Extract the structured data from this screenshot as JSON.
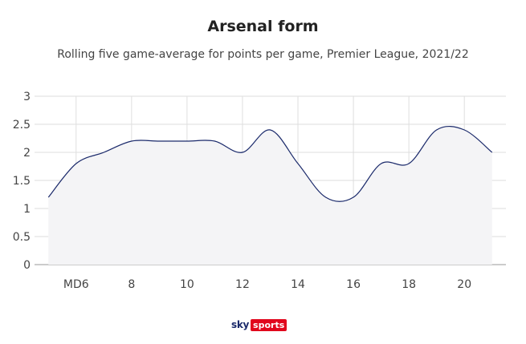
{
  "chart_data": {
    "type": "area",
    "title": "Arsenal form",
    "subtitle": "Rolling five game-average for points per game, Premier League, 2021/22",
    "x": [
      5,
      6,
      7,
      8,
      9,
      10,
      11,
      12,
      13,
      14,
      15,
      16,
      17,
      18,
      19,
      20,
      21
    ],
    "values": [
      1.2,
      1.8,
      2.0,
      2.2,
      2.2,
      2.2,
      2.2,
      2.0,
      2.4,
      1.8,
      1.2,
      1.2,
      1.8,
      1.8,
      2.4,
      2.4,
      2.0
    ],
    "xticks": [
      6,
      8,
      10,
      12,
      14,
      16,
      18,
      20
    ],
    "xtick_labels": [
      "MD6",
      "8",
      "10",
      "12",
      "14",
      "16",
      "18",
      "20"
    ],
    "xlim": [
      4.5,
      21.5
    ],
    "ylim": [
      0,
      3
    ],
    "yticks": [
      0,
      0.5,
      1,
      1.5,
      2,
      2.5,
      3
    ],
    "ytick_labels": [
      "0",
      "0.5",
      "1",
      "1.5",
      "2",
      "2.5",
      "3"
    ],
    "grid": true,
    "line_color": "#1b2a6b",
    "fill_color": "#f4f4f6"
  },
  "logo": {
    "sky": "sky",
    "sports": "sports"
  }
}
